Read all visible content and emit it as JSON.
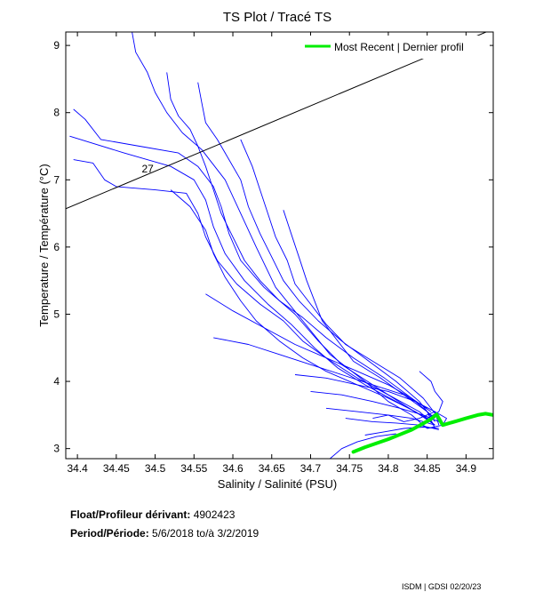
{
  "chart_data": {
    "type": "line",
    "title": "TS Plot / Tracé TS",
    "xlabel": "Salinity / Salinité (PSU)",
    "ylabel": "Temperature / Température (°C)",
    "xlim": [
      34.385,
      34.935
    ],
    "ylim": [
      2.85,
      9.2
    ],
    "xticks": [
      34.4,
      34.45,
      34.5,
      34.55,
      34.6,
      34.65,
      34.7,
      34.75,
      34.8,
      34.85,
      34.9
    ],
    "xtick_labels": [
      "34.4",
      "34.45",
      "34.5",
      "34.55",
      "34.6",
      "34.65",
      "34.7",
      "34.75",
      "34.8",
      "34.85",
      "34.9"
    ],
    "yticks": [
      3,
      4,
      5,
      6,
      7,
      8,
      9
    ],
    "ytick_labels": [
      "3",
      "4",
      "5",
      "6",
      "7",
      "8",
      "9"
    ],
    "legend": {
      "label": "Most Recent | Dernier profil",
      "position": "top-right"
    },
    "isopycnal": {
      "label": "27",
      "from": [
        34.385,
        6.57
      ],
      "to": [
        34.93,
        9.22
      ],
      "label_at": [
        34.485,
        7.12
      ]
    },
    "series": [
      {
        "name": "Historical profiles",
        "color": "#0000ff",
        "profiles": [
          [
            [
              34.47,
              9.22
            ],
            [
              34.475,
              8.9
            ],
            [
              34.49,
              8.6
            ],
            [
              34.5,
              8.3
            ],
            [
              34.515,
              8.0
            ],
            [
              34.535,
              7.7
            ],
            [
              34.56,
              7.45
            ],
            [
              34.59,
              7.0
            ],
            [
              34.61,
              6.5
            ],
            [
              34.63,
              6.0
            ],
            [
              34.655,
              5.4
            ],
            [
              34.69,
              4.9
            ],
            [
              34.725,
              4.4
            ],
            [
              34.77,
              4.0
            ],
            [
              34.8,
              3.7
            ],
            [
              34.83,
              3.5
            ],
            [
              34.85,
              3.3
            ]
          ],
          [
            [
              34.395,
              8.05
            ],
            [
              34.41,
              7.9
            ],
            [
              34.43,
              7.6
            ],
            [
              34.48,
              7.5
            ],
            [
              34.53,
              7.4
            ],
            [
              34.555,
              7.2
            ],
            [
              34.575,
              6.9
            ],
            [
              34.585,
              6.6
            ],
            [
              34.595,
              6.2
            ],
            [
              34.61,
              5.8
            ],
            [
              34.64,
              5.4
            ],
            [
              34.68,
              5.0
            ],
            [
              34.71,
              4.6
            ],
            [
              34.74,
              4.25
            ],
            [
              34.78,
              3.95
            ],
            [
              34.82,
              3.65
            ],
            [
              34.855,
              3.4
            ]
          ],
          [
            [
              34.39,
              7.65
            ],
            [
              34.46,
              7.4
            ],
            [
              34.52,
              7.2
            ],
            [
              34.55,
              7.0
            ],
            [
              34.565,
              6.7
            ],
            [
              34.575,
              6.3
            ],
            [
              34.59,
              5.9
            ],
            [
              34.615,
              5.5
            ],
            [
              34.645,
              5.15
            ],
            [
              34.675,
              4.85
            ],
            [
              34.705,
              4.5
            ],
            [
              34.735,
              4.2
            ],
            [
              34.77,
              3.95
            ],
            [
              34.81,
              3.7
            ],
            [
              34.85,
              3.45
            ]
          ],
          [
            [
              34.395,
              7.3
            ],
            [
              34.42,
              7.25
            ],
            [
              34.435,
              7.0
            ],
            [
              34.45,
              6.9
            ],
            [
              34.5,
              6.85
            ],
            [
              34.54,
              6.8
            ],
            [
              34.555,
              6.5
            ],
            [
              34.565,
              6.15
            ],
            [
              34.58,
              5.8
            ],
            [
              34.605,
              5.45
            ],
            [
              34.635,
              5.15
            ],
            [
              34.665,
              4.9
            ],
            [
              34.69,
              4.6
            ],
            [
              34.72,
              4.35
            ],
            [
              34.76,
              4.05
            ],
            [
              34.8,
              3.8
            ],
            [
              34.84,
              3.55
            ],
            [
              34.86,
              3.35
            ]
          ],
          [
            [
              34.515,
              8.6
            ],
            [
              34.52,
              8.2
            ],
            [
              34.53,
              7.95
            ],
            [
              34.545,
              7.75
            ],
            [
              34.555,
              7.5
            ],
            [
              34.565,
              7.2
            ],
            [
              34.575,
              6.85
            ],
            [
              34.585,
              6.5
            ],
            [
              34.6,
              6.15
            ],
            [
              34.615,
              5.8
            ],
            [
              34.635,
              5.5
            ],
            [
              34.66,
              5.2
            ],
            [
              34.69,
              4.95
            ],
            [
              34.72,
              4.65
            ],
            [
              34.755,
              4.35
            ],
            [
              34.795,
              4.05
            ],
            [
              34.83,
              3.75
            ],
            [
              34.86,
              3.45
            ]
          ],
          [
            [
              34.555,
              8.45
            ],
            [
              34.56,
              8.15
            ],
            [
              34.565,
              7.85
            ],
            [
              34.58,
              7.6
            ],
            [
              34.595,
              7.3
            ],
            [
              34.61,
              7.0
            ],
            [
              34.62,
              6.6
            ],
            [
              34.635,
              6.2
            ],
            [
              34.65,
              5.85
            ],
            [
              34.665,
              5.5
            ],
            [
              34.685,
              5.2
            ],
            [
              34.71,
              4.9
            ],
            [
              34.74,
              4.6
            ],
            [
              34.775,
              4.3
            ],
            [
              34.81,
              4.0
            ],
            [
              34.84,
              3.7
            ],
            [
              34.86,
              3.4
            ]
          ],
          [
            [
              34.61,
              7.6
            ],
            [
              34.625,
              7.2
            ],
            [
              34.635,
              6.85
            ],
            [
              34.645,
              6.5
            ],
            [
              34.655,
              6.15
            ],
            [
              34.67,
              5.8
            ],
            [
              34.68,
              5.45
            ],
            [
              34.7,
              5.15
            ],
            [
              34.72,
              4.85
            ],
            [
              34.745,
              4.55
            ],
            [
              34.78,
              4.3
            ],
            [
              34.815,
              4.05
            ],
            [
              34.845,
              3.75
            ],
            [
              34.865,
              3.45
            ]
          ],
          [
            [
              34.665,
              6.55
            ],
            [
              34.675,
              6.2
            ],
            [
              34.685,
              5.85
            ],
            [
              34.695,
              5.5
            ],
            [
              34.705,
              5.2
            ],
            [
              34.715,
              4.9
            ],
            [
              34.735,
              4.6
            ],
            [
              34.755,
              4.3
            ],
            [
              34.79,
              4.05
            ],
            [
              34.82,
              3.8
            ],
            [
              34.85,
              3.55
            ],
            [
              34.86,
              3.3
            ]
          ],
          [
            [
              34.52,
              6.85
            ],
            [
              34.545,
              6.6
            ],
            [
              34.565,
              6.25
            ],
            [
              34.575,
              5.9
            ],
            [
              34.59,
              5.55
            ],
            [
              34.61,
              5.2
            ],
            [
              34.63,
              4.9
            ],
            [
              34.66,
              4.6
            ],
            [
              34.69,
              4.35
            ],
            [
              34.72,
              4.15
            ],
            [
              34.76,
              3.95
            ],
            [
              34.8,
              3.75
            ],
            [
              34.835,
              3.55
            ],
            [
              34.86,
              3.35
            ]
          ],
          [
            [
              34.565,
              5.3
            ],
            [
              34.6,
              5.05
            ],
            [
              34.64,
              4.8
            ],
            [
              34.68,
              4.55
            ],
            [
              34.72,
              4.35
            ],
            [
              34.76,
              4.15
            ],
            [
              34.8,
              3.95
            ],
            [
              34.83,
              3.75
            ],
            [
              34.855,
              3.55
            ]
          ],
          [
            [
              34.575,
              4.65
            ],
            [
              34.62,
              4.55
            ],
            [
              34.66,
              4.4
            ],
            [
              34.7,
              4.25
            ],
            [
              34.74,
              4.1
            ],
            [
              34.78,
              3.95
            ],
            [
              34.82,
              3.8
            ],
            [
              34.85,
              3.6
            ]
          ],
          [
            [
              34.68,
              4.1
            ],
            [
              34.72,
              4.05
            ],
            [
              34.76,
              3.95
            ],
            [
              34.8,
              3.85
            ],
            [
              34.835,
              3.7
            ],
            [
              34.86,
              3.55
            ],
            [
              34.865,
              3.35
            ]
          ],
          [
            [
              34.7,
              3.85
            ],
            [
              34.74,
              3.8
            ],
            [
              34.78,
              3.7
            ],
            [
              34.815,
              3.6
            ],
            [
              34.845,
              3.5
            ],
            [
              34.865,
              3.4
            ]
          ],
          [
            [
              34.72,
              3.6
            ],
            [
              34.76,
              3.55
            ],
            [
              34.8,
              3.5
            ],
            [
              34.83,
              3.45
            ],
            [
              34.86,
              3.35
            ]
          ],
          [
            [
              34.745,
              3.45
            ],
            [
              34.78,
              3.4
            ],
            [
              34.81,
              3.38
            ],
            [
              34.84,
              3.35
            ],
            [
              34.865,
              3.28
            ]
          ],
          [
            [
              34.77,
              3.2
            ],
            [
              34.795,
              3.25
            ],
            [
              34.82,
              3.3
            ],
            [
              34.845,
              3.32
            ],
            [
              34.865,
              3.3
            ]
          ],
          [
            [
              34.725,
              2.85
            ],
            [
              34.74,
              3.0
            ],
            [
              34.76,
              3.1
            ],
            [
              34.785,
              3.18
            ],
            [
              34.81,
              3.22
            ]
          ],
          [
            [
              34.85,
              3.3
            ],
            [
              34.87,
              3.35
            ],
            [
              34.875,
              3.45
            ],
            [
              34.86,
              3.55
            ],
            [
              34.84,
              3.45
            ],
            [
              34.82,
              3.4
            ],
            [
              34.8,
              3.5
            ],
            [
              34.78,
              3.45
            ]
          ],
          [
            [
              34.84,
              4.15
            ],
            [
              34.855,
              4.0
            ],
            [
              34.86,
              3.85
            ],
            [
              34.87,
              3.7
            ],
            [
              34.865,
              3.55
            ],
            [
              34.85,
              3.45
            ]
          ]
        ]
      },
      {
        "name": "Most Recent | Dernier profil",
        "color": "#00ee00",
        "values": [
          [
            34.755,
            2.95
          ],
          [
            34.77,
            3.02
          ],
          [
            34.785,
            3.08
          ],
          [
            34.8,
            3.14
          ],
          [
            34.815,
            3.21
          ],
          [
            34.83,
            3.28
          ],
          [
            34.843,
            3.36
          ],
          [
            34.855,
            3.44
          ],
          [
            34.862,
            3.51
          ],
          [
            34.865,
            3.45
          ],
          [
            34.87,
            3.35
          ],
          [
            34.888,
            3.41
          ],
          [
            34.9,
            3.45
          ],
          [
            34.915,
            3.5
          ],
          [
            34.925,
            3.52
          ],
          [
            34.935,
            3.5
          ]
        ]
      }
    ]
  },
  "info": {
    "float_label": "Float/Profileur dérivant:",
    "float_value": "4902423",
    "period_label": "Period/Période:",
    "period_from": "5/6/2018",
    "period_sep": "to/à",
    "period_to": "3/2/2019"
  },
  "credit": "ISDM | GDSI  02/20/23"
}
